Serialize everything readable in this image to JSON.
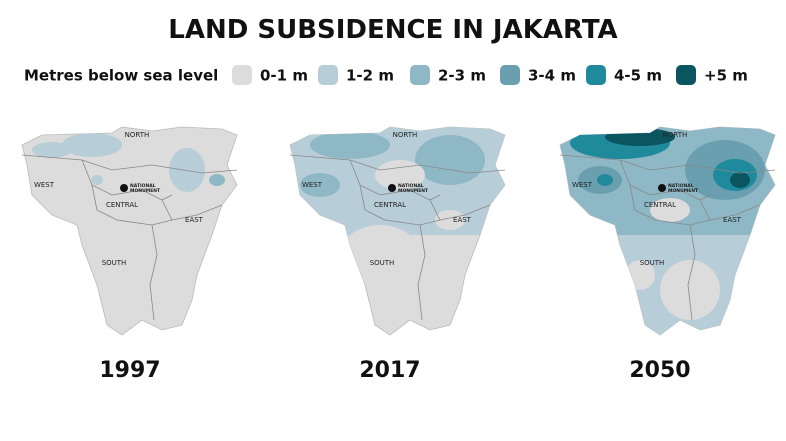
{
  "title": "LAND SUBSIDENCE IN JAKARTA",
  "legend": {
    "label": "Metres below sea level",
    "items": [
      {
        "label": "0-1 m",
        "color": "#dcdcdc"
      },
      {
        "label": "1-2 m",
        "color": "#b7cdd8"
      },
      {
        "label": "2-3 m",
        "color": "#8fb8c6"
      },
      {
        "label": "3-4 m",
        "color": "#6a9fb0"
      },
      {
        "label": "4-5 m",
        "color": "#1f8a9c"
      },
      {
        "label": "+5 m",
        "color": "#0b5560"
      }
    ]
  },
  "maps": [
    {
      "year": "1997",
      "regions": [
        "NORTH",
        "WEST",
        "CENTRAL",
        "EAST",
        "SOUTH"
      ],
      "landmark": [
        "NATIONAL",
        "MONUMENT"
      ]
    },
    {
      "year": "2017",
      "regions": [
        "NORTH",
        "WEST",
        "CENTRAL",
        "EAST",
        "SOUTH"
      ],
      "landmark": [
        "NATIONAL",
        "MONUMENT"
      ]
    },
    {
      "year": "2050",
      "regions": [
        "NORTH",
        "WEST",
        "CENTRAL",
        "EAST",
        "SOUTH"
      ],
      "landmark": [
        "NATIONAL",
        "MONUMENT"
      ]
    }
  ]
}
